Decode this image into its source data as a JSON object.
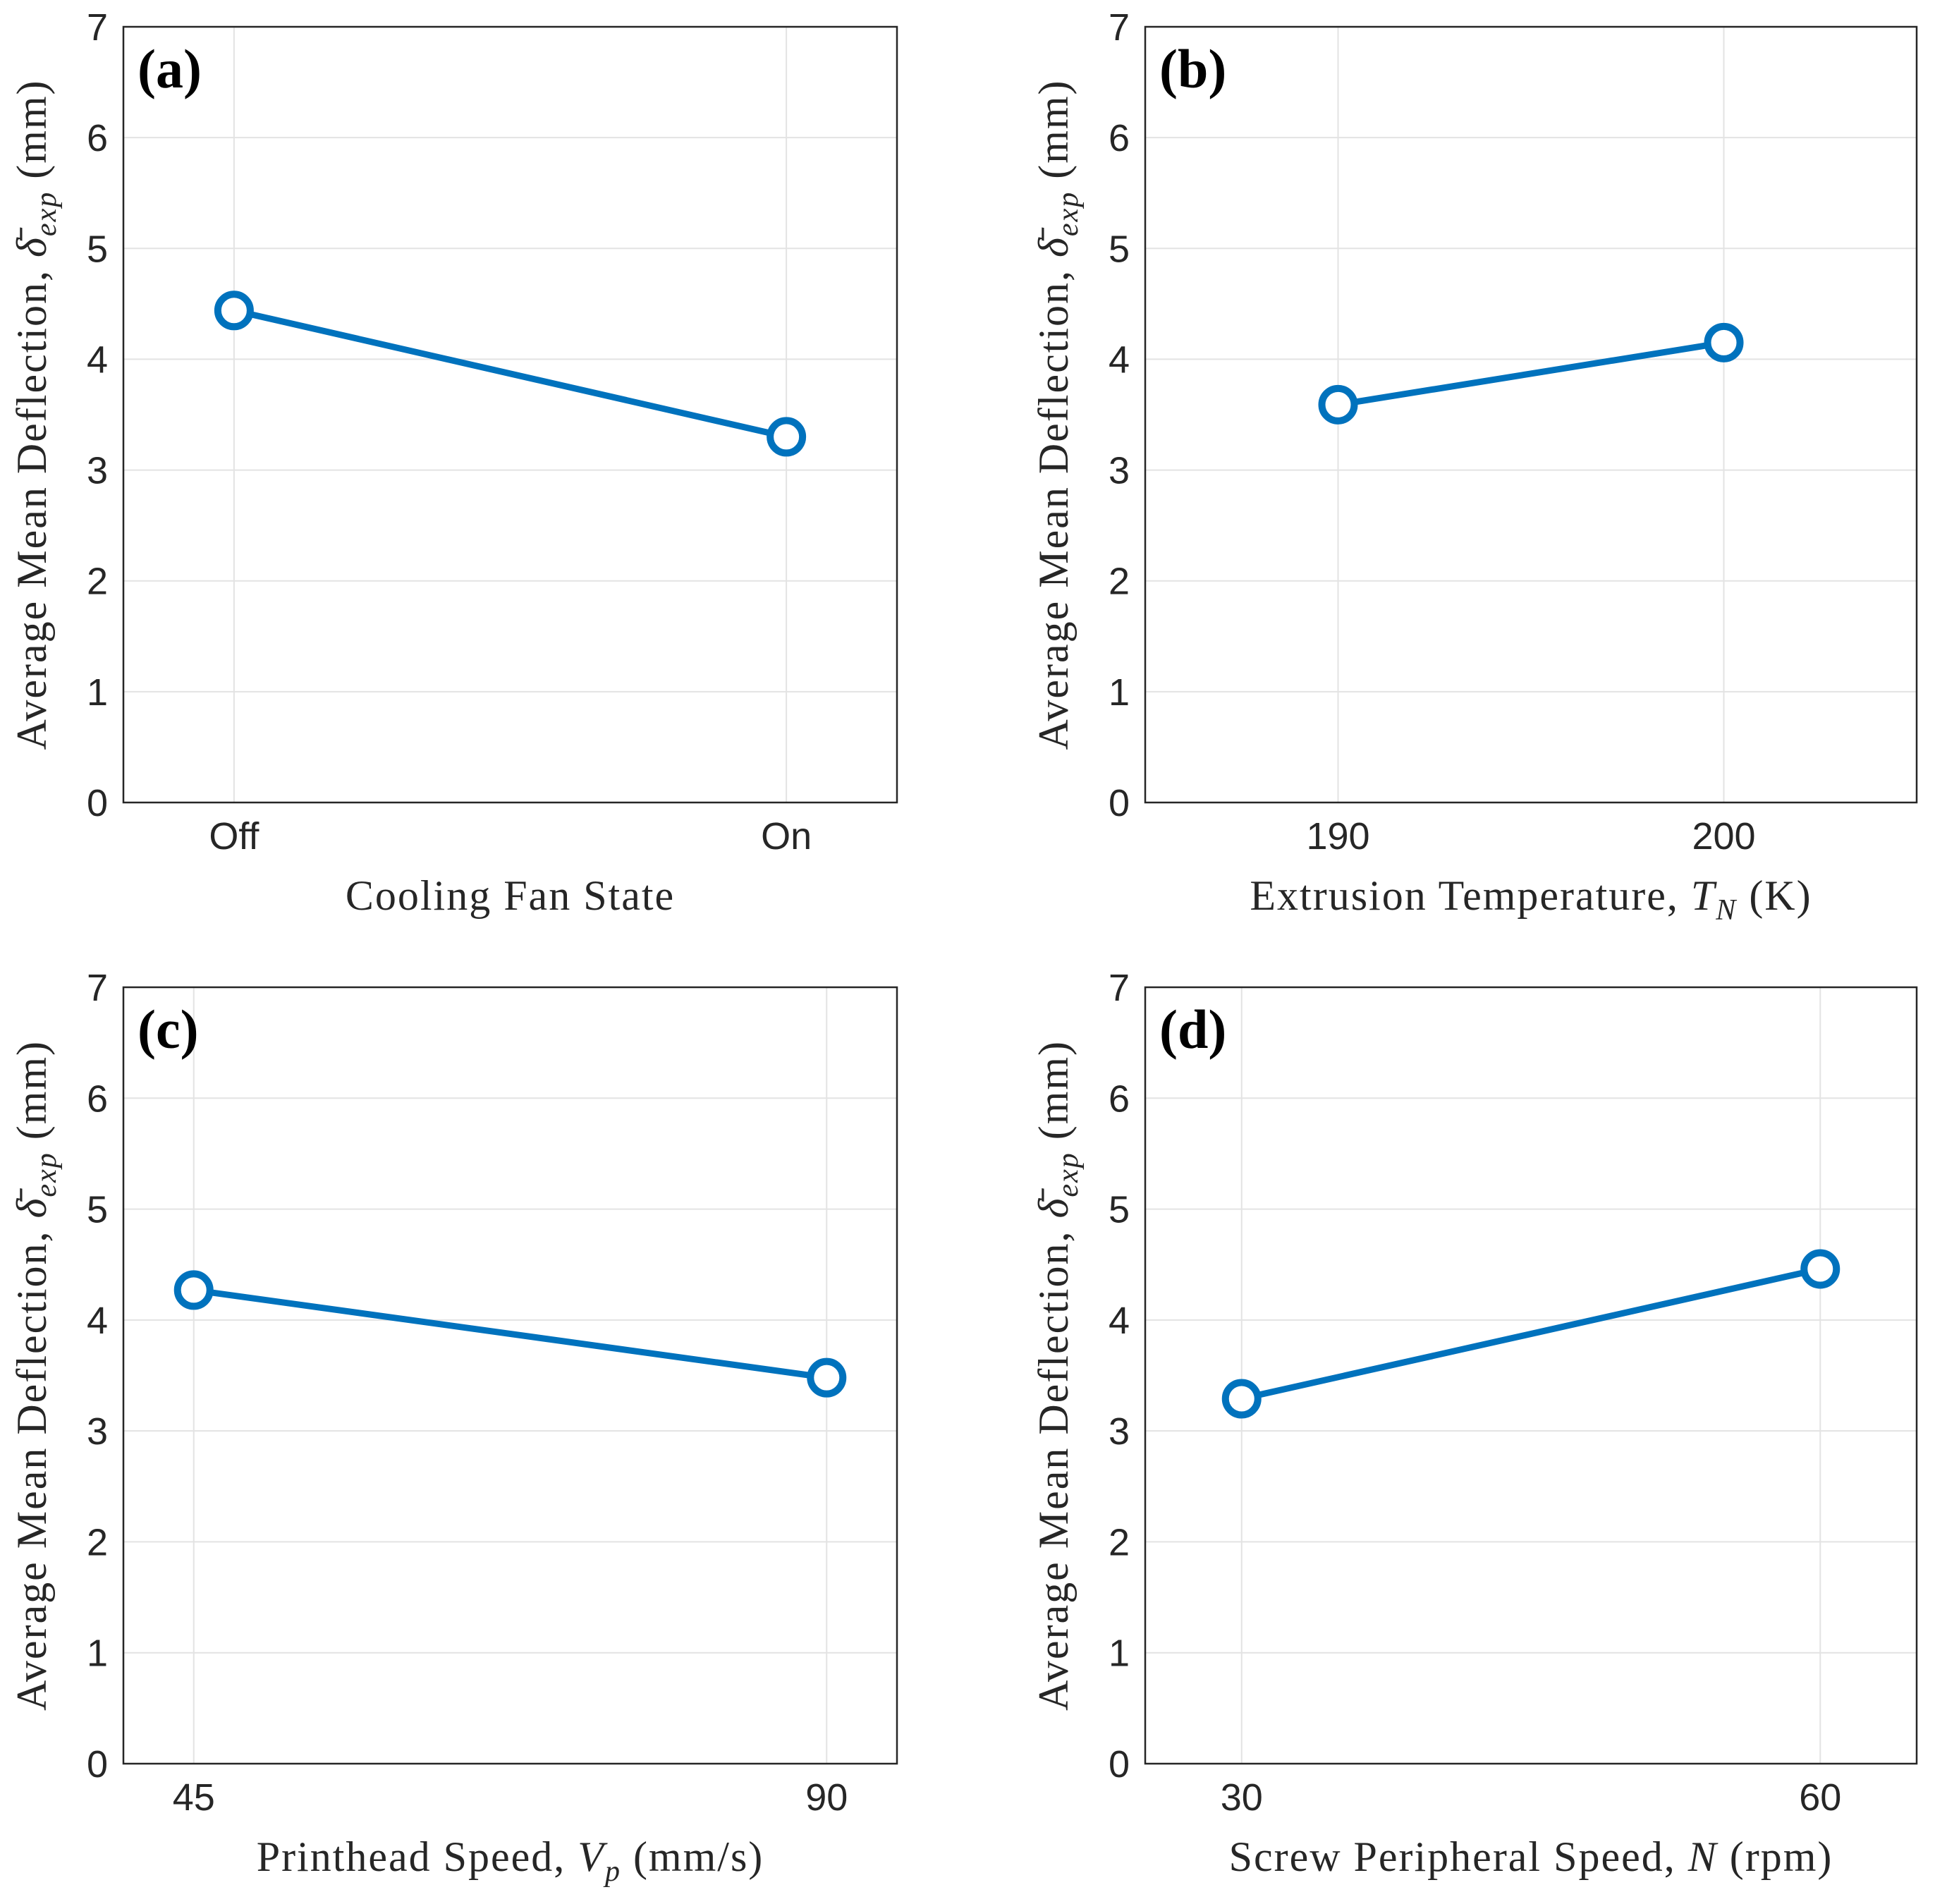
{
  "chart_data": [
    {
      "type": "line",
      "panel": "(a)",
      "categories": [
        "Off",
        "On"
      ],
      "values": [
        4.44,
        3.3
      ],
      "color": "#0072BD",
      "ylim": [
        0,
        7
      ],
      "yticks": [
        0,
        1,
        2,
        3,
        4,
        5,
        6,
        7
      ],
      "grid": true,
      "xlabel": "Cooling Fan State",
      "ylabel": {
        "text": "Average Mean Deflection, ",
        "symbol": "δ̄",
        "sub": "exp",
        "unit": " (mm)"
      }
    },
    {
      "type": "line",
      "panel": "(b)",
      "x": [
        190,
        200
      ],
      "values": [
        3.59,
        4.15
      ],
      "color": "#0072BD",
      "xlim": [
        185,
        205
      ],
      "xticks": [
        190,
        200
      ],
      "ylim": [
        0,
        7
      ],
      "yticks": [
        0,
        1,
        2,
        3,
        4,
        5,
        6,
        7
      ],
      "grid": true,
      "xlabel": {
        "text": "Extrusion Temperature, ",
        "symbol": "T",
        "sub": "N",
        "unit": " (K)"
      },
      "ylabel": {
        "text": "Average Mean Deflection, ",
        "symbol": "δ̄",
        "sub": "exp",
        "unit": " (mm)"
      }
    },
    {
      "type": "line",
      "panel": "(c)",
      "x": [
        45,
        90
      ],
      "values": [
        4.27,
        3.48
      ],
      "color": "#0072BD",
      "xlim": [
        40,
        95
      ],
      "xticks": [
        45,
        90
      ],
      "ylim": [
        0,
        7
      ],
      "yticks": [
        0,
        1,
        2,
        3,
        4,
        5,
        6,
        7
      ],
      "grid": true,
      "xlabel": {
        "text": "Printhead Speed, ",
        "symbol": "V",
        "sub": "p",
        "unit": " (mm/s)"
      },
      "ylabel": {
        "text": "Average Mean Deflection, ",
        "symbol": "δ̄",
        "sub": "exp",
        "unit": " (mm)"
      }
    },
    {
      "type": "line",
      "panel": "(d)",
      "x": [
        30,
        60
      ],
      "values": [
        3.29,
        4.46
      ],
      "color": "#0072BD",
      "xlim": [
        25,
        65
      ],
      "xticks": [
        30,
        60
      ],
      "ylim": [
        0,
        7
      ],
      "yticks": [
        0,
        1,
        2,
        3,
        4,
        5,
        6,
        7
      ],
      "grid": true,
      "xlabel": {
        "text": "Screw Peripheral Speed, ",
        "symbol": "N",
        "sub": "",
        "unit": " (rpm)"
      },
      "ylabel": {
        "text": "Average Mean Deflection, ",
        "symbol": "δ̄",
        "sub": "exp",
        "unit": " (mm)"
      }
    }
  ]
}
